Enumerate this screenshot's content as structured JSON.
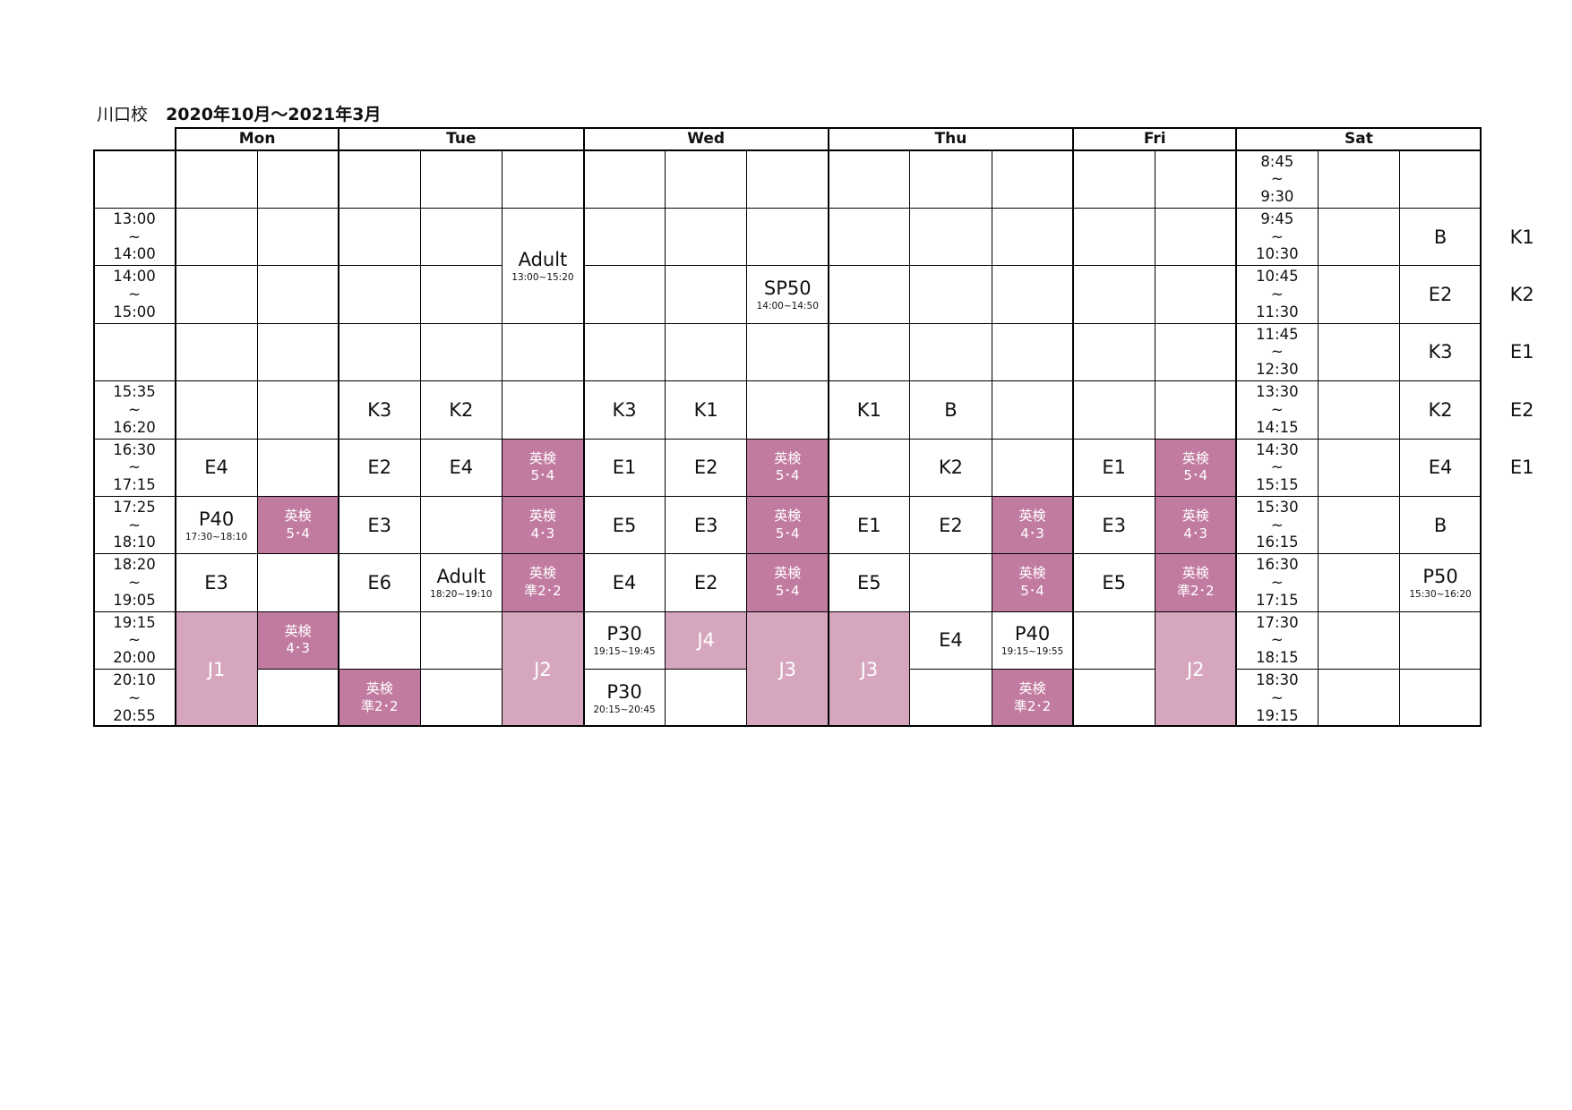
{
  "header": {
    "school": "川口校",
    "period": "2020年10月～2021年3月"
  },
  "days": [
    "Mon",
    "Tue",
    "Wed",
    "Thu",
    "Fri",
    "Sat"
  ],
  "left_times": [
    "",
    "13:00\n~\n14:00",
    "14:00\n~\n15:00",
    "",
    "15:35\n~\n16:20",
    "16:30\n~\n17:15",
    "17:25\n~\n18:10",
    "18:20\n~\n19:05",
    "19:15\n~\n20:00",
    "20:10\n~\n20:55"
  ],
  "sat_times": [
    "8:45\n~\n9:30",
    "9:45\n~\n10:30",
    "10:45\n~\n11:30",
    "11:45\n~\n12:30",
    "13:30\n~\n14:15",
    "14:30\n~\n15:15",
    "15:30\n~\n16:15",
    "16:30\n~\n17:15",
    "17:30\n~\n18:15",
    "18:30\n~\n19:15"
  ],
  "legend_colors": {
    "K": "#ffff99",
    "E": "#c8d9f3",
    "B": "#f2cccd",
    "special": "#eeeeee",
    "eiken": "#c27ba0",
    "junior": "#d5a6bd"
  },
  "classes": [
    {
      "day": "Mon",
      "col": 1,
      "row": 5,
      "span": 1,
      "label": "E4",
      "kind": "E"
    },
    {
      "day": "Mon",
      "col": 1,
      "row": 6,
      "span": 1,
      "label": "P40",
      "sub": "17:30~18:10",
      "kind": "special"
    },
    {
      "day": "Mon",
      "col": 2,
      "row": 6,
      "span": 1,
      "label": "英検\n5･4",
      "kind": "eiken"
    },
    {
      "day": "Mon",
      "col": 1,
      "row": 7,
      "span": 1,
      "label": "E3",
      "kind": "E"
    },
    {
      "day": "Mon",
      "col": 1,
      "row": 8,
      "span": 2,
      "label": "J1",
      "kind": "junior"
    },
    {
      "day": "Mon",
      "col": 2,
      "row": 8,
      "span": 1,
      "label": "英検\n4･3",
      "kind": "eiken"
    },
    {
      "day": "Tue",
      "col": 3,
      "row": 1,
      "span": 2,
      "label": "Adult",
      "sub": "13:00~15:20",
      "kind": "special"
    },
    {
      "day": "Tue",
      "col": 1,
      "row": 4,
      "span": 1,
      "label": "K3",
      "kind": "K"
    },
    {
      "day": "Tue",
      "col": 2,
      "row": 4,
      "span": 1,
      "label": "K2",
      "kind": "K"
    },
    {
      "day": "Tue",
      "col": 1,
      "row": 5,
      "span": 1,
      "label": "E2",
      "kind": "E"
    },
    {
      "day": "Tue",
      "col": 2,
      "row": 5,
      "span": 1,
      "label": "E4",
      "kind": "E"
    },
    {
      "day": "Tue",
      "col": 3,
      "row": 5,
      "span": 1,
      "label": "英検\n5･4",
      "kind": "eiken"
    },
    {
      "day": "Tue",
      "col": 1,
      "row": 6,
      "span": 1,
      "label": "E3",
      "kind": "E"
    },
    {
      "day": "Tue",
      "col": 3,
      "row": 6,
      "span": 1,
      "label": "英検\n4･3",
      "kind": "eiken"
    },
    {
      "day": "Tue",
      "col": 1,
      "row": 7,
      "span": 1,
      "label": "E6",
      "kind": "E"
    },
    {
      "day": "Tue",
      "col": 2,
      "row": 7,
      "span": 1,
      "label": "Adult",
      "sub": "18:20~19:10",
      "kind": "special"
    },
    {
      "day": "Tue",
      "col": 3,
      "row": 7,
      "span": 1,
      "label": "英検\n準2･2",
      "kind": "eiken"
    },
    {
      "day": "Tue",
      "col": 3,
      "row": 8,
      "span": 2,
      "label": "J2",
      "kind": "junior"
    },
    {
      "day": "Tue",
      "col": 1,
      "row": 9,
      "span": 1,
      "label": "英検\n準2･2",
      "kind": "eiken"
    },
    {
      "day": "Wed",
      "col": 3,
      "row": 2,
      "span": 1,
      "label": "SP50",
      "sub": "14:00~14:50",
      "kind": "special"
    },
    {
      "day": "Wed",
      "col": 1,
      "row": 4,
      "span": 1,
      "label": "K3",
      "kind": "K"
    },
    {
      "day": "Wed",
      "col": 2,
      "row": 4,
      "span": 1,
      "label": "K1",
      "kind": "K"
    },
    {
      "day": "Wed",
      "col": 1,
      "row": 5,
      "span": 1,
      "label": "E1",
      "kind": "E"
    },
    {
      "day": "Wed",
      "col": 2,
      "row": 5,
      "span": 1,
      "label": "E2",
      "kind": "E"
    },
    {
      "day": "Wed",
      "col": 3,
      "row": 5,
      "span": 1,
      "label": "英検\n5･4",
      "kind": "eiken"
    },
    {
      "day": "Wed",
      "col": 1,
      "row": 6,
      "span": 1,
      "label": "E5",
      "kind": "E"
    },
    {
      "day": "Wed",
      "col": 2,
      "row": 6,
      "span": 1,
      "label": "E3",
      "kind": "E"
    },
    {
      "day": "Wed",
      "col": 3,
      "row": 6,
      "span": 1,
      "label": "英検\n5･4",
      "kind": "eiken"
    },
    {
      "day": "Wed",
      "col": 1,
      "row": 7,
      "span": 1,
      "label": "E4",
      "kind": "E"
    },
    {
      "day": "Wed",
      "col": 2,
      "row": 7,
      "span": 1,
      "label": "E2",
      "kind": "E"
    },
    {
      "day": "Wed",
      "col": 3,
      "row": 7,
      "span": 1,
      "label": "英検\n5･4",
      "kind": "eiken"
    },
    {
      "day": "Wed",
      "col": 1,
      "row": 8,
      "span": 1,
      "label": "P30",
      "sub": "19:15~19:45",
      "kind": "special"
    },
    {
      "day": "Wed",
      "col": 2,
      "row": 8,
      "span": 1,
      "label": "J4",
      "kind": "junior"
    },
    {
      "day": "Wed",
      "col": 3,
      "row": 8,
      "span": 2,
      "label": "J3",
      "kind": "junior"
    },
    {
      "day": "Wed",
      "col": 1,
      "row": 9,
      "span": 1,
      "label": "P30",
      "sub": "20:15~20:45",
      "kind": "special"
    },
    {
      "day": "Thu",
      "col": 1,
      "row": 4,
      "span": 1,
      "label": "K1",
      "kind": "K"
    },
    {
      "day": "Thu",
      "col": 2,
      "row": 4,
      "span": 1,
      "label": "B",
      "kind": "B"
    },
    {
      "day": "Thu",
      "col": 2,
      "row": 5,
      "span": 1,
      "label": "K2",
      "kind": "K"
    },
    {
      "day": "Thu",
      "col": 1,
      "row": 6,
      "span": 1,
      "label": "E1",
      "kind": "E"
    },
    {
      "day": "Thu",
      "col": 2,
      "row": 6,
      "span": 1,
      "label": "E2",
      "kind": "E"
    },
    {
      "day": "Thu",
      "col": 3,
      "row": 6,
      "span": 1,
      "label": "英検\n4･3",
      "kind": "eiken"
    },
    {
      "day": "Thu",
      "col": 1,
      "row": 7,
      "span": 1,
      "label": "E5",
      "kind": "E"
    },
    {
      "day": "Thu",
      "col": 3,
      "row": 7,
      "span": 1,
      "label": "英検\n5･4",
      "kind": "eiken"
    },
    {
      "day": "Thu",
      "col": 1,
      "row": 8,
      "span": 2,
      "label": "J3",
      "kind": "junior"
    },
    {
      "day": "Thu",
      "col": 2,
      "row": 8,
      "span": 1,
      "label": "E4",
      "kind": "E"
    },
    {
      "day": "Thu",
      "col": 3,
      "row": 8,
      "span": 1,
      "label": "P40",
      "sub": "19:15~19:55",
      "kind": "special"
    },
    {
      "day": "Thu",
      "col": 3,
      "row": 9,
      "span": 1,
      "label": "英検\n準2･2",
      "kind": "eiken"
    },
    {
      "day": "Fri",
      "col": 1,
      "row": 5,
      "span": 1,
      "label": "E1",
      "kind": "E"
    },
    {
      "day": "Fri",
      "col": 2,
      "row": 5,
      "span": 1,
      "label": "英検\n5･4",
      "kind": "eiken"
    },
    {
      "day": "Fri",
      "col": 1,
      "row": 6,
      "span": 1,
      "label": "E3",
      "kind": "E"
    },
    {
      "day": "Fri",
      "col": 2,
      "row": 6,
      "span": 1,
      "label": "英検\n4･3",
      "kind": "eiken"
    },
    {
      "day": "Fri",
      "col": 1,
      "row": 7,
      "span": 1,
      "label": "E5",
      "kind": "E"
    },
    {
      "day": "Fri",
      "col": 2,
      "row": 7,
      "span": 1,
      "label": "英検\n準2･2",
      "kind": "eiken"
    },
    {
      "day": "Fri",
      "col": 2,
      "row": 8,
      "span": 2,
      "label": "J2",
      "kind": "junior"
    },
    {
      "day": "Sat",
      "col": 2,
      "row": 1,
      "span": 1,
      "label": "B",
      "kind": "B"
    },
    {
      "day": "Sat",
      "col": 3,
      "row": 1,
      "span": 1,
      "label": "K1",
      "kind": "K"
    },
    {
      "day": "Sat",
      "col": 2,
      "row": 2,
      "span": 1,
      "label": "E2",
      "kind": "E"
    },
    {
      "day": "Sat",
      "col": 3,
      "row": 2,
      "span": 1,
      "label": "K2",
      "kind": "K"
    },
    {
      "day": "Sat",
      "col": 2,
      "row": 3,
      "span": 1,
      "label": "K3",
      "kind": "K"
    },
    {
      "day": "Sat",
      "col": 3,
      "row": 3,
      "span": 1,
      "label": "E1",
      "kind": "E"
    },
    {
      "day": "Sat",
      "col": 2,
      "row": 4,
      "span": 1,
      "label": "K2",
      "kind": "K"
    },
    {
      "day": "Sat",
      "col": 3,
      "row": 4,
      "span": 1,
      "label": "E2",
      "kind": "E"
    },
    {
      "day": "Sat",
      "col": 2,
      "row": 5,
      "span": 1,
      "label": "E4",
      "kind": "E"
    },
    {
      "day": "Sat",
      "col": 3,
      "row": 5,
      "span": 1,
      "label": "E1",
      "kind": "E"
    },
    {
      "day": "Sat",
      "col": 2,
      "row": 6,
      "span": 1,
      "label": "B",
      "kind": "B"
    },
    {
      "day": "Sat",
      "col": 2,
      "row": 7,
      "span": 1,
      "label": "P50",
      "sub": "15:30~16:20",
      "kind": "special"
    }
  ]
}
